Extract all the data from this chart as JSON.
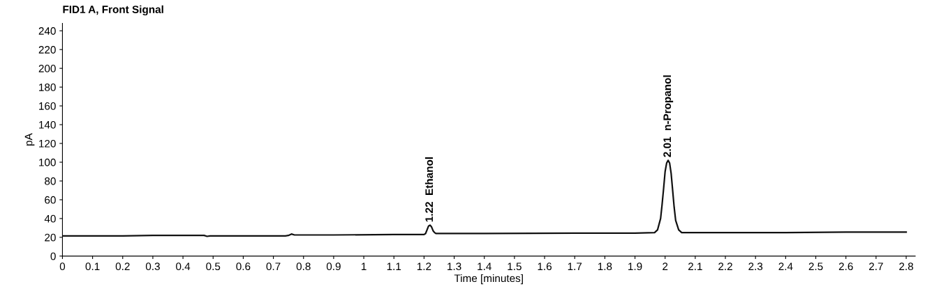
{
  "chart_data": {
    "type": "line",
    "title": "FID1 A, Front Signal",
    "xlabel": "Time [minutes]",
    "ylabel": "pA",
    "series": [
      {
        "color": "#111111",
        "x": [
          0,
          0.2,
          0.3,
          0.4,
          0.47,
          0.48,
          0.49,
          0.6,
          0.74,
          0.75,
          0.76,
          0.77,
          0.9,
          1.1,
          1.2,
          1.205,
          1.21,
          1.215,
          1.22,
          1.225,
          1.23,
          1.235,
          1.24,
          1.25,
          1.4,
          1.7,
          1.9,
          1.965,
          1.975,
          1.985,
          1.99,
          1.995,
          2.0,
          2.005,
          2.01,
          2.015,
          2.02,
          2.025,
          2.03,
          2.035,
          2.045,
          2.055,
          2.1,
          2.4,
          2.6,
          2.8
        ],
        "values": [
          21.5,
          21.5,
          22,
          22,
          22,
          21,
          21.5,
          21.5,
          21.5,
          22,
          23.5,
          22.5,
          22.5,
          23,
          23,
          24,
          28,
          32,
          33,
          31,
          27,
          25,
          24,
          24,
          24,
          24.5,
          24.5,
          25,
          28,
          40,
          55,
          72,
          90,
          99,
          102,
          99,
          88,
          70,
          52,
          38,
          28,
          25,
          25,
          25,
          25.5,
          25.5
        ]
      }
    ],
    "annotations": [
      {
        "text": "1.22  Ethanol",
        "x": 1.22,
        "y": 33
      },
      {
        "text": "2.01  n-Propanol",
        "x": 2.01,
        "y": 102
      }
    ],
    "xlim": [
      0,
      2.83
    ],
    "ylim": [
      0,
      248
    ],
    "xticks": [
      0,
      0.1,
      0.2,
      0.3,
      0.4,
      0.5,
      0.6,
      0.7,
      0.8,
      0.9,
      1,
      1.1,
      1.2,
      1.3,
      1.4,
      1.5,
      1.6,
      1.7,
      1.8,
      1.9,
      2,
      2.1,
      2.2,
      2.3,
      2.4,
      2.5,
      2.6,
      2.7,
      2.8
    ],
    "yticks": [
      0,
      20,
      40,
      60,
      80,
      100,
      120,
      140,
      160,
      180,
      200,
      220,
      240
    ],
    "grid": false,
    "marker": "none",
    "line_style": "solid",
    "legend": false
  }
}
